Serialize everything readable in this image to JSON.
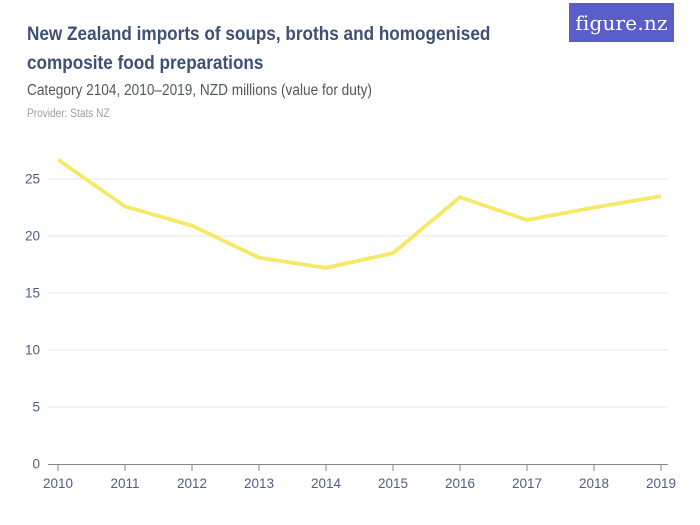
{
  "header": {
    "title": "New Zealand imports of soups, broths and homogenised composite food preparations",
    "subtitle": "Category 2104, 2010–2019, NZD millions (value for duty)",
    "provider": "Provider: Stats NZ"
  },
  "logo": {
    "text": "figure.nz",
    "background": "#5a5ec8",
    "text_color": "#ffffff"
  },
  "chart_data": {
    "type": "line",
    "title": "New Zealand imports of soups, broths and homogenised composite food preparations",
    "subtitle": "Category 2104, 2010–2019, NZD millions (value for duty)",
    "series_name": "NZD millions (value for duty)",
    "x": [
      2010,
      2011,
      2012,
      2013,
      2014,
      2015,
      2016,
      2017,
      2018,
      2019
    ],
    "values": [
      26.7,
      22.6,
      20.9,
      18.1,
      17.2,
      18.5,
      23.4,
      21.4,
      22.5,
      23.5
    ],
    "xlabel": "",
    "ylabel": "",
    "ylim": [
      0,
      27
    ],
    "y_ticks": [
      0,
      5,
      10,
      15,
      20,
      25
    ],
    "grid": true,
    "legend": false,
    "line_color": "#f6e968",
    "label_color": "#4d5f85",
    "axis_color": "#85878a",
    "grid_color": "#e7e7e7"
  }
}
